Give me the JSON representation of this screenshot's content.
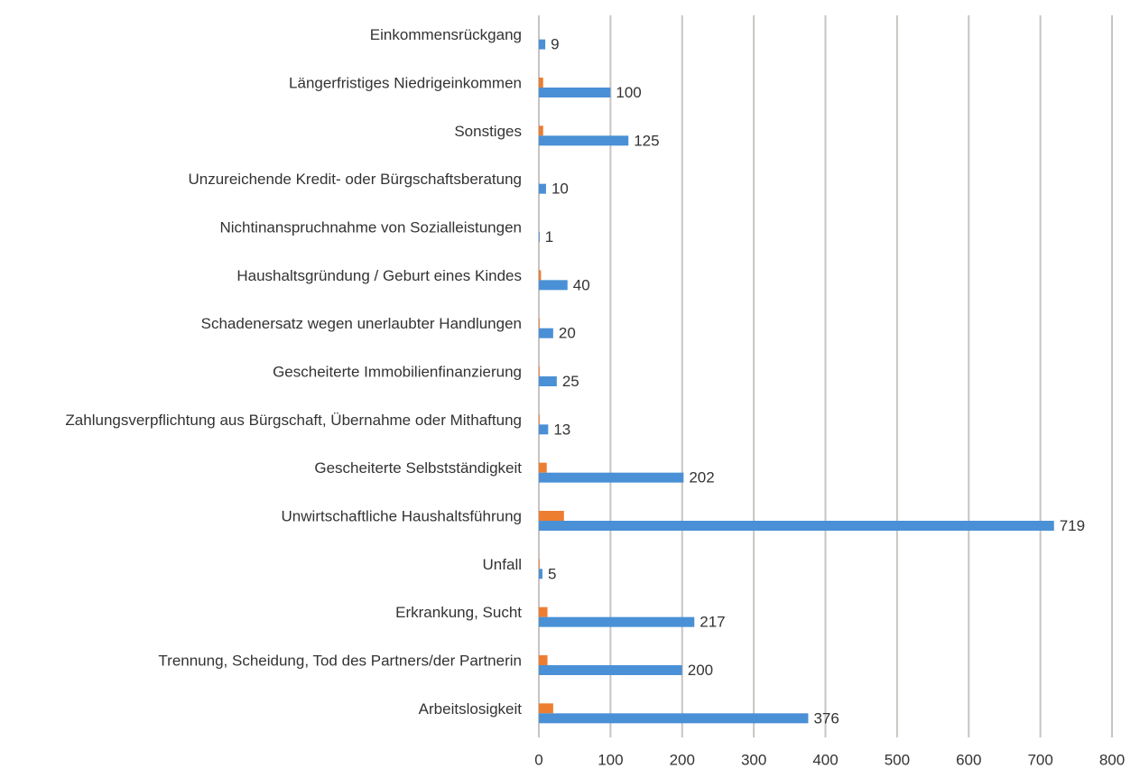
{
  "chart_data": {
    "type": "hbar",
    "categories": [
      "Einkommensrückgang",
      "Längerfristiges Niedrigeinkommen",
      "Sonstiges",
      "Unzureichende Kredit- oder Bürgschaftsberatung",
      "Nichtinanspruchnahme von Sozialleistungen",
      "Haushaltsgründung / Geburt eines Kindes",
      "Schadenersatz wegen unerlaubter Handlungen",
      "Gescheiterte Immobilienfinanzierung",
      "Zahlungsverpflichtung aus Bürgschaft, Übernahme oder Mithaftung",
      "Gescheiterte Selbstständigkeit",
      "Unwirtschaftliche Haushaltsführung",
      "Unfall",
      "Erkrankung, Sucht",
      "Trennung, Scheidung, Tod des Partners/der Partnerin",
      "Arbeitslosigkeit"
    ],
    "series": [
      {
        "color": "#ed7d31",
        "values": [
          0,
          6,
          6,
          0,
          0,
          3,
          1,
          1,
          1,
          11,
          35,
          1,
          12,
          12,
          20
        ]
      },
      {
        "color": "#4a90d6",
        "values": [
          9,
          100,
          125,
          10,
          1,
          40,
          20,
          25,
          13,
          202,
          719,
          5,
          217,
          200,
          376
        ]
      }
    ],
    "xlim": [
      0,
      800
    ],
    "xticks": [
      0,
      100,
      200,
      300,
      400,
      500,
      600,
      700,
      800
    ],
    "grid": true
  }
}
